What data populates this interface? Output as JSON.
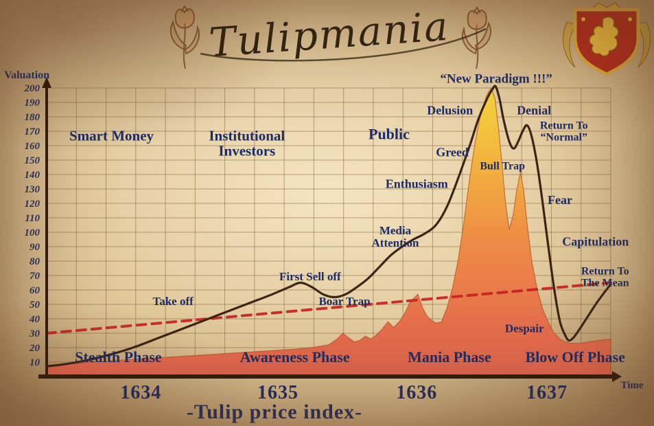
{
  "page": {
    "title_script": "Tulipmania",
    "subtitle": "-Tulip price index-"
  },
  "chart_data": {
    "type": "area",
    "title": "Tulipmania",
    "xlabel": "Time",
    "ylabel": "Valuation",
    "ylim": [
      0,
      210
    ],
    "xlim": [
      0,
      100
    ],
    "y_ticks": [
      10,
      20,
      30,
      40,
      50,
      60,
      70,
      80,
      90,
      100,
      110,
      120,
      130,
      140,
      150,
      160,
      170,
      180,
      190,
      200
    ],
    "x_ticks": [
      {
        "label": "1634",
        "x": 16.7
      },
      {
        "label": "1635",
        "x": 41
      },
      {
        "label": "1636",
        "x": 65.6
      },
      {
        "label": "1637",
        "x": 88.7
      }
    ],
    "grid": {
      "columns": 19,
      "row_step": 10
    },
    "colors": {
      "text_navy": "#1d2c66",
      "curve": "#3b2515",
      "mean_line": "#c51f1f",
      "area_top": "#f4d93c",
      "area_bottom": "#e3664e",
      "axis": "#2d1b0c"
    },
    "series": [
      {
        "name": "Tulip price index",
        "type": "area",
        "points": [
          [
            0,
            8
          ],
          [
            4,
            9
          ],
          [
            8,
            10
          ],
          [
            12,
            11
          ],
          [
            16,
            12
          ],
          [
            20,
            13
          ],
          [
            24,
            14
          ],
          [
            28,
            15
          ],
          [
            32,
            16
          ],
          [
            36,
            17
          ],
          [
            40,
            18
          ],
          [
            44,
            19
          ],
          [
            47,
            20
          ],
          [
            50,
            22
          ],
          [
            51.5,
            26
          ],
          [
            52.5,
            30
          ],
          [
            53.5,
            27
          ],
          [
            54.5,
            24
          ],
          [
            55.5,
            25
          ],
          [
            56.5,
            28
          ],
          [
            57.5,
            26
          ],
          [
            58.5,
            29
          ],
          [
            59.5,
            33
          ],
          [
            60.5,
            38
          ],
          [
            61.5,
            34
          ],
          [
            62.5,
            38
          ],
          [
            63.5,
            44
          ],
          [
            64.5,
            52
          ],
          [
            65.8,
            57
          ],
          [
            66.6,
            48
          ],
          [
            67.4,
            42
          ],
          [
            68.2,
            39
          ],
          [
            69,
            37
          ],
          [
            70,
            38
          ],
          [
            71,
            48
          ],
          [
            72,
            62
          ],
          [
            73,
            82
          ],
          [
            74,
            108
          ],
          [
            75,
            138
          ],
          [
            76,
            163
          ],
          [
            77,
            183
          ],
          [
            78,
            195
          ],
          [
            78.8,
            200
          ],
          [
            79.5,
            192
          ],
          [
            80.1,
            172
          ],
          [
            80.7,
            148
          ],
          [
            81.3,
            122
          ],
          [
            82,
            102
          ],
          [
            82.7,
            112
          ],
          [
            83.3,
            128
          ],
          [
            84,
            142
          ],
          [
            84.6,
            128
          ],
          [
            85.2,
            105
          ],
          [
            86,
            80
          ],
          [
            87,
            60
          ],
          [
            88,
            46
          ],
          [
            89,
            37
          ],
          [
            90,
            30
          ],
          [
            91,
            26
          ],
          [
            92,
            24
          ],
          [
            93,
            23
          ],
          [
            94.5,
            23
          ],
          [
            96,
            24
          ],
          [
            98,
            25
          ],
          [
            100,
            26
          ]
        ]
      },
      {
        "name": "Bubble phases curve",
        "type": "line",
        "points": [
          [
            0,
            7
          ],
          [
            4,
            9
          ],
          [
            8,
            12
          ],
          [
            12,
            16
          ],
          [
            16,
            21
          ],
          [
            20,
            27
          ],
          [
            24,
            33
          ],
          [
            28,
            39
          ],
          [
            32,
            45
          ],
          [
            36,
            51
          ],
          [
            40,
            57
          ],
          [
            43,
            62
          ],
          [
            45,
            65
          ],
          [
            47,
            62
          ],
          [
            49,
            57
          ],
          [
            51,
            55
          ],
          [
            53,
            57
          ],
          [
            55,
            62
          ],
          [
            57,
            68
          ],
          [
            59,
            76
          ],
          [
            61,
            84
          ],
          [
            63,
            90
          ],
          [
            65,
            95
          ],
          [
            67,
            99
          ],
          [
            69,
            105
          ],
          [
            71,
            118
          ],
          [
            73,
            138
          ],
          [
            75,
            160
          ],
          [
            76.5,
            178
          ],
          [
            78,
            192
          ],
          [
            79,
            199
          ],
          [
            79.6,
            201
          ],
          [
            80.3,
            192
          ],
          [
            81,
            178
          ],
          [
            82,
            163
          ],
          [
            82.8,
            158
          ],
          [
            83.6,
            163
          ],
          [
            84.5,
            171
          ],
          [
            85.2,
            174
          ],
          [
            86,
            166
          ],
          [
            87,
            146
          ],
          [
            88,
            118
          ],
          [
            89,
            88
          ],
          [
            90,
            60
          ],
          [
            91,
            38
          ],
          [
            92,
            28
          ],
          [
            92.6,
            25
          ],
          [
            93.4,
            27
          ],
          [
            94.5,
            33
          ],
          [
            96,
            42
          ],
          [
            97.5,
            51
          ],
          [
            99,
            59
          ],
          [
            100,
            64
          ]
        ]
      },
      {
        "name": "Mean",
        "type": "dashed-line",
        "points": [
          [
            0,
            30
          ],
          [
            100,
            65
          ]
        ]
      }
    ],
    "phase_labels": [
      {
        "text": "Stealth Phase",
        "x": 12.7
      },
      {
        "text": "Awareness Phase",
        "x": 44
      },
      {
        "text": "Mania Phase",
        "x": 71.4
      },
      {
        "text": "Blow Off Phase",
        "x": 93.7
      }
    ],
    "annotations": [
      {
        "text": "Smart Money",
        "x": 11.5,
        "y": 166,
        "size": 21
      },
      {
        "text": "Institutional\nInvestors",
        "x": 35.5,
        "y": 166,
        "size": 21
      },
      {
        "text": "Public",
        "x": 60.7,
        "y": 167,
        "size": 22
      },
      {
        "text": "Take off",
        "x": 22.4,
        "y": 52,
        "size": 17
      },
      {
        "text": "First Sell off",
        "x": 46.7,
        "y": 69,
        "size": 17
      },
      {
        "text": "Boar Trap",
        "x": 52.8,
        "y": 52,
        "size": 17
      },
      {
        "text": "Media\nAttention",
        "x": 61.8,
        "y": 101,
        "size": 17
      },
      {
        "text": "Enthusiasm",
        "x": 65.6,
        "y": 133,
        "size": 18
      },
      {
        "text": "Greed",
        "x": 71.9,
        "y": 155,
        "size": 18
      },
      {
        "text": "Delusion",
        "x": 71.5,
        "y": 184,
        "size": 18
      },
      {
        "text": "“New Paradigm !!!”",
        "x": 79.7,
        "y": 206,
        "size": 19
      },
      {
        "text": "Denial",
        "x": 86.4,
        "y": 184,
        "size": 18
      },
      {
        "text": "Bull Trap",
        "x": 80.8,
        "y": 146,
        "size": 16
      },
      {
        "text": "Return To\n“Normal”",
        "x": 91.7,
        "y": 174,
        "size": 16
      },
      {
        "text": "Fear",
        "x": 91,
        "y": 122,
        "size": 18
      },
      {
        "text": "Capitulation",
        "x": 97.3,
        "y": 93,
        "size": 18
      },
      {
        "text": "Despair",
        "x": 84.7,
        "y": 33,
        "size": 17
      },
      {
        "text": "Return To\nThe Mean",
        "x": 99,
        "y": 73,
        "size": 16
      }
    ]
  }
}
